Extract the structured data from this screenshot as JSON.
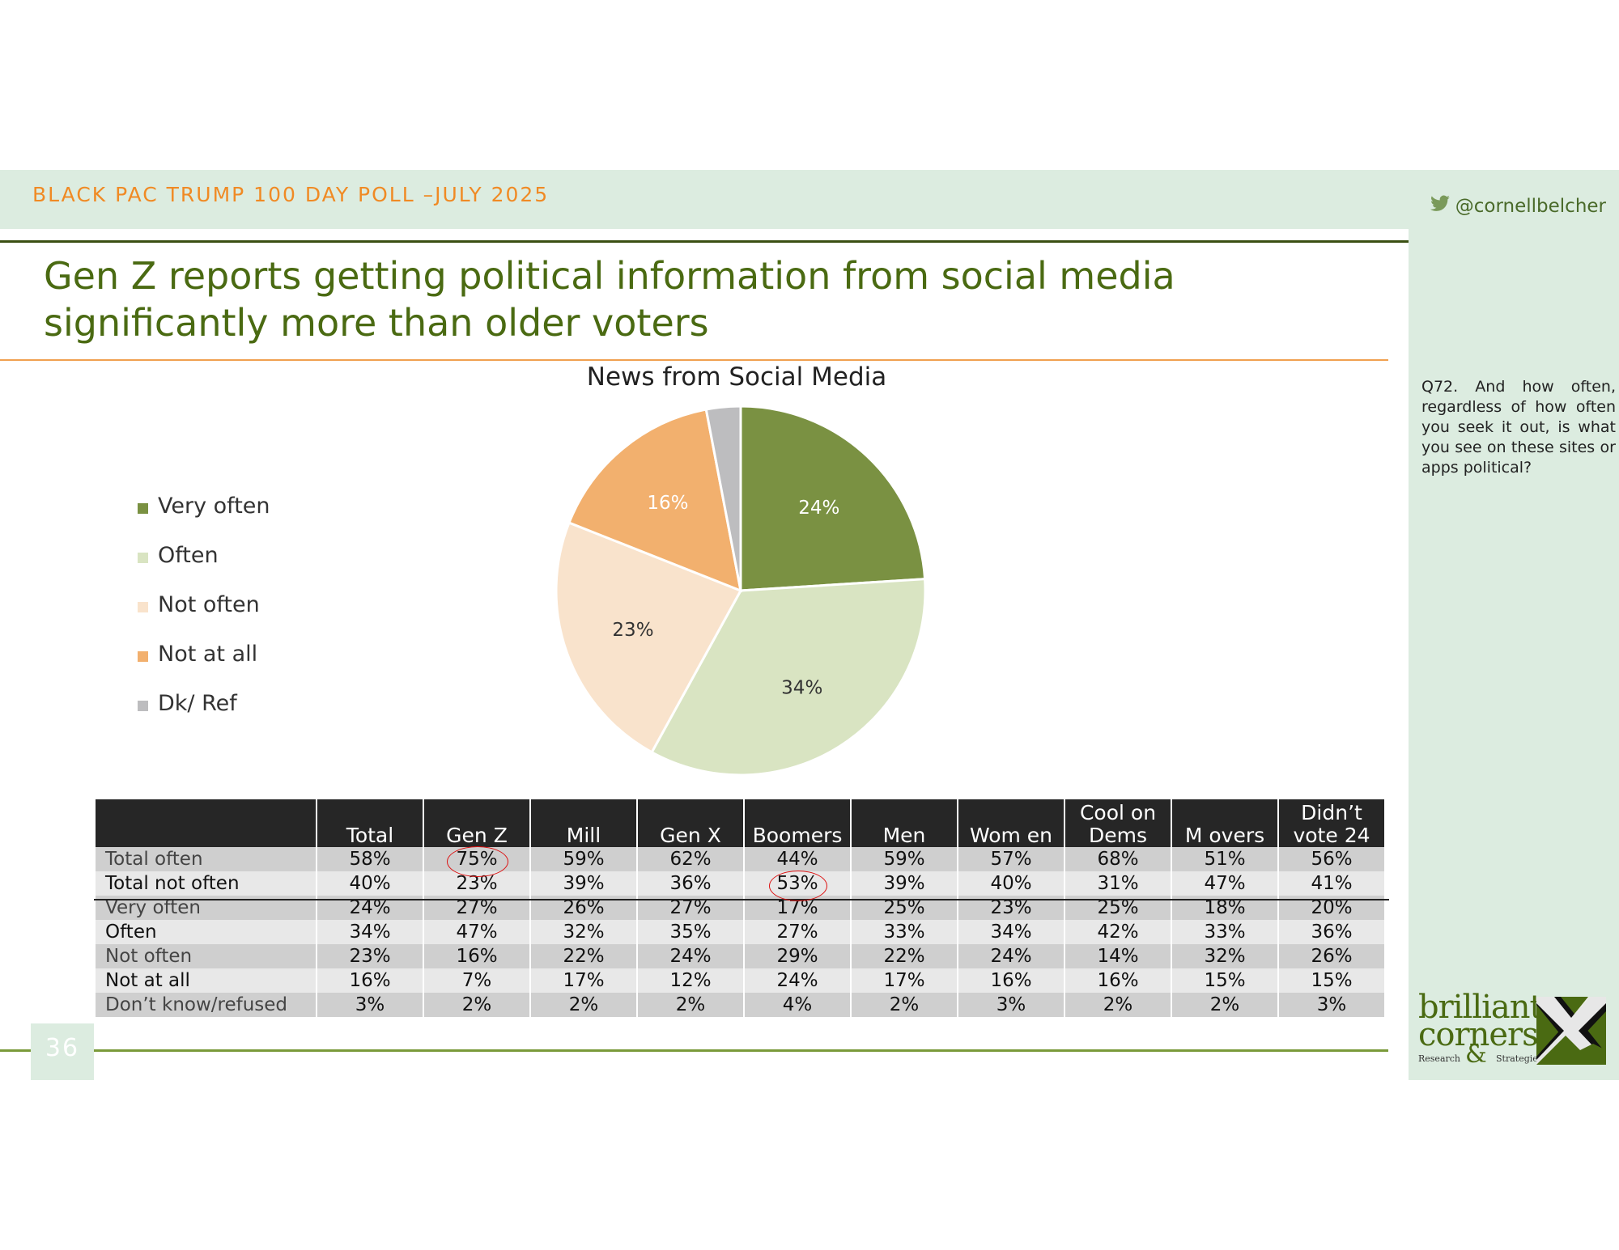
{
  "header": {
    "poll_title": "BLACK PAC TRUMP 100 DAY POLL –JULY 2025",
    "twitter_handle": "@cornellbelcher"
  },
  "slide": {
    "title": "Gen Z reports getting political information from social media significantly more than older voters",
    "question": "Q72. And how often, regardless of how often you seek it out, is what you see on these sites or apps political?",
    "page_number": "36"
  },
  "chart_data": {
    "type": "pie",
    "title": "News from Social Media",
    "slices": [
      {
        "label": "Very often",
        "value": 24,
        "value_label": "24%",
        "color": "#7a9142"
      },
      {
        "label": "Often",
        "value": 34,
        "value_label": "34%",
        "color": "#d9e4c2"
      },
      {
        "label": "Not often",
        "value": 23,
        "value_label": "23%",
        "color": "#f9e3cc"
      },
      {
        "label": "Not at all",
        "value": 16,
        "value_label": "16%",
        "color": "#f2b06e"
      },
      {
        "label": "Dk/ Ref",
        "value": 3,
        "value_label": "",
        "color": "#bdbdbf"
      }
    ],
    "legend_position": "left"
  },
  "table": {
    "columns": [
      "Total",
      "Gen Z",
      "Mill",
      "Gen X",
      "Boomers",
      "Men",
      "Wom en",
      "Cool on Dems",
      "M overs",
      "Didn’t vote 24"
    ],
    "rows": [
      {
        "label": "Total often",
        "values": [
          "58%",
          "75%",
          "59%",
          "62%",
          "44%",
          "59%",
          "57%",
          "68%",
          "51%",
          "56%"
        ]
      },
      {
        "label": "Total not often",
        "values": [
          "40%",
          "23%",
          "39%",
          "36%",
          "53%",
          "39%",
          "40%",
          "31%",
          "47%",
          "41%"
        ]
      },
      {
        "label": "Very often",
        "values": [
          "24%",
          "27%",
          "26%",
          "27%",
          "17%",
          "25%",
          "23%",
          "25%",
          "18%",
          "20%"
        ]
      },
      {
        "label": "Often",
        "values": [
          "34%",
          "47%",
          "32%",
          "35%",
          "27%",
          "33%",
          "34%",
          "42%",
          "33%",
          "36%"
        ]
      },
      {
        "label": "Not often",
        "values": [
          "23%",
          "16%",
          "22%",
          "24%",
          "29%",
          "22%",
          "24%",
          "14%",
          "32%",
          "26%"
        ]
      },
      {
        "label": "Not at all",
        "values": [
          "16%",
          "7%",
          "17%",
          "12%",
          "24%",
          "17%",
          "16%",
          "16%",
          "15%",
          "15%"
        ]
      },
      {
        "label": "Don’t know/refused",
        "values": [
          "3%",
          "2%",
          "2%",
          "2%",
          "4%",
          "2%",
          "3%",
          "2%",
          "2%",
          "3%"
        ]
      }
    ]
  },
  "logo": {
    "line1": "brilliant",
    "line2": "corners",
    "research": "Research",
    "amp": "&",
    "strategies": "Strategies"
  }
}
